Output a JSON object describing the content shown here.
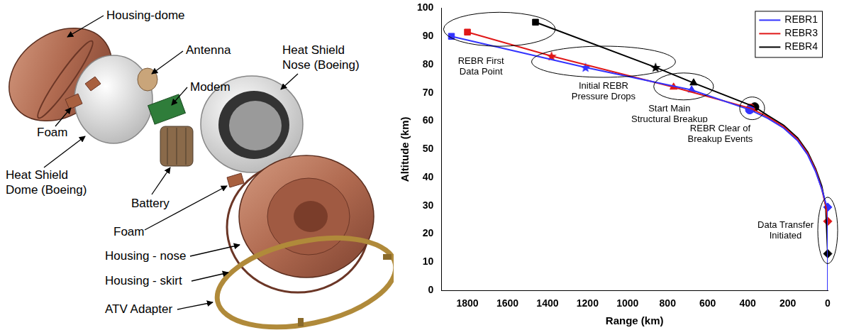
{
  "diagram": {
    "labels": [
      "Housing-dome",
      "Antenna",
      "Modem",
      "Heat Shield Nose (Boeing)",
      "Foam",
      "Heat Shield Dome (Boeing)",
      "Battery",
      "Foam",
      "Housing - nose",
      "Housing - skirt",
      "ATV Adapter"
    ]
  },
  "chart_data": {
    "type": "line",
    "x_label": "Range (km)",
    "y_label": "Altitude (km)",
    "xlim": [
      1930,
      0
    ],
    "xticks": [
      1800,
      1600,
      1400,
      1200,
      1000,
      800,
      600,
      400,
      200,
      0
    ],
    "ylim": [
      0,
      100
    ],
    "yticks": [
      0,
      10,
      20,
      30,
      40,
      50,
      60,
      70,
      80,
      90,
      100
    ],
    "grid": false,
    "legend": "top right",
    "series": [
      {
        "name": "REBR1",
        "color": "#3333ff",
        "x": [
          1880,
          1210,
          680,
          390,
          300,
          220,
          150,
          100,
          60,
          30,
          10,
          0,
          0
        ],
        "values": [
          90,
          79,
          71,
          64,
          61,
          57.5,
          53,
          48,
          42,
          36,
          31,
          29.5,
          0
        ]
      },
      {
        "name": "REBR3",
        "color": "#e01818",
        "x": [
          1800,
          1380,
          770,
          385,
          300,
          220,
          150,
          100,
          60,
          30,
          10,
          0,
          0
        ],
        "values": [
          91.5,
          83,
          72,
          64.5,
          61.5,
          58,
          53.5,
          48.5,
          42.5,
          36,
          30,
          24.5,
          0
        ]
      },
      {
        "name": "REBR4",
        "color": "#000000",
        "x": [
          1460,
          860,
          670,
          365,
          300,
          220,
          150,
          100,
          60,
          30,
          10,
          0,
          0
        ],
        "values": [
          95,
          79,
          73.5,
          65,
          62,
          58.5,
          54,
          49,
          43,
          37,
          30,
          13,
          0
        ]
      }
    ],
    "events": [
      {
        "label": "REBR First Data Point",
        "marker": "square",
        "x": [
          1880,
          1800,
          1460
        ],
        "values": [
          90,
          91.5,
          95
        ]
      },
      {
        "label": "Initial REBR Pressure Drops",
        "marker": "star",
        "x": [
          1210,
          1380,
          860
        ],
        "values": [
          79,
          83,
          79
        ]
      },
      {
        "label": "Start Main Structural Breakup",
        "marker": "triangle",
        "x": [
          680,
          770,
          670
        ],
        "values": [
          71,
          72,
          73.5
        ]
      },
      {
        "label": "REBR Clear of Breakup Events",
        "marker": "circle",
        "x": [
          390,
          385,
          365
        ],
        "values": [
          64,
          64.5,
          65
        ]
      },
      {
        "label": "Data Transfer Initiated",
        "marker": "diamond",
        "x": [
          0,
          0,
          0
        ],
        "values": [
          29.5,
          24.5,
          13
        ]
      }
    ]
  }
}
